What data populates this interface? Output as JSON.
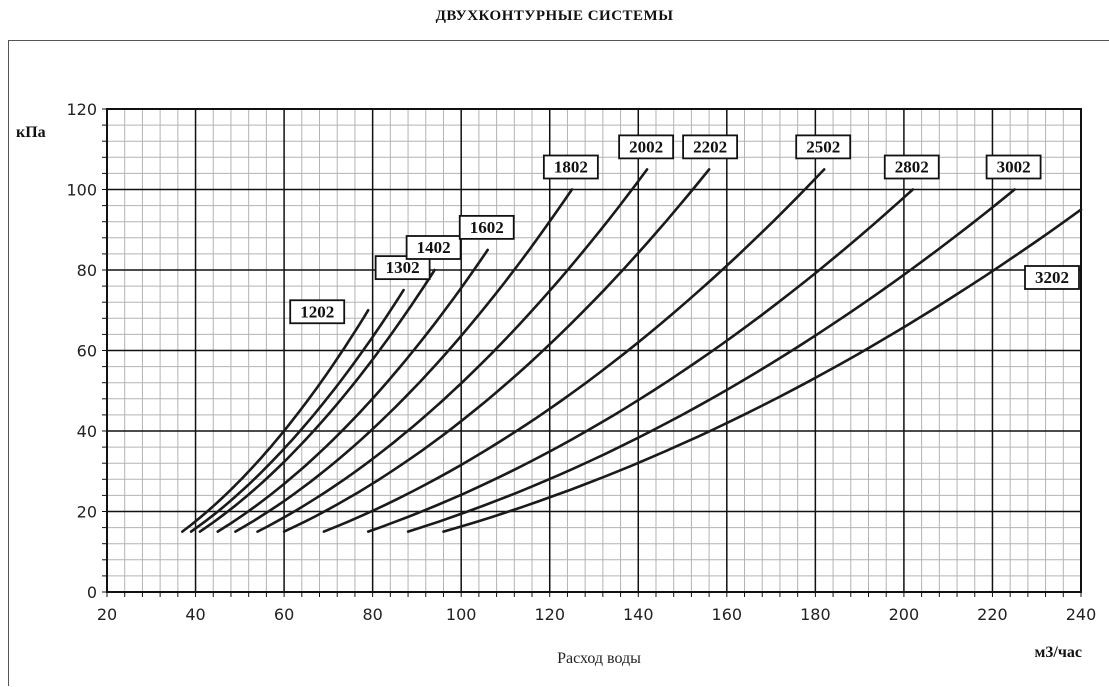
{
  "chart_data": {
    "type": "line",
    "title": "ДВУХКОНТУРНЫЕ СИСТЕМЫ",
    "xlabel": "Расход воды",
    "x_unit": "м3/час",
    "y_unit": "кПа",
    "xlim": [
      20,
      240
    ],
    "ylim": [
      0,
      120
    ],
    "x_ticks": [
      "20",
      "40",
      "60",
      "80",
      "100",
      "120",
      "140",
      "160",
      "180",
      "200",
      "220",
      "240"
    ],
    "y_ticks": [
      "0",
      "20",
      "40",
      "60",
      "80",
      "100",
      "120"
    ],
    "grid": true,
    "series": [
      {
        "name": "1202",
        "x": [
          37,
          79
        ],
        "y": [
          15,
          70
        ]
      },
      {
        "name": "1302",
        "x": [
          39,
          87
        ],
        "y": [
          15,
          75
        ]
      },
      {
        "name": "1402",
        "x": [
          41,
          94
        ],
        "y": [
          15,
          80
        ]
      },
      {
        "name": "1602",
        "x": [
          45,
          106
        ],
        "y": [
          15,
          85
        ]
      },
      {
        "name": "1802",
        "x": [
          49,
          125
        ],
        "y": [
          15,
          100
        ]
      },
      {
        "name": "2002",
        "x": [
          54,
          142
        ],
        "y": [
          15,
          105
        ]
      },
      {
        "name": "2202",
        "x": [
          60,
          156
        ],
        "y": [
          15,
          105
        ]
      },
      {
        "name": "2502",
        "x": [
          69,
          182
        ],
        "y": [
          15,
          105
        ]
      },
      {
        "name": "2802",
        "x": [
          79,
          202
        ],
        "y": [
          15,
          100
        ]
      },
      {
        "name": "3002",
        "x": [
          88,
          225
        ],
        "y": [
          15,
          100
        ]
      },
      {
        "name": "3202",
        "x": [
          96,
          240
        ],
        "y": [
          15,
          95
        ]
      }
    ]
  }
}
